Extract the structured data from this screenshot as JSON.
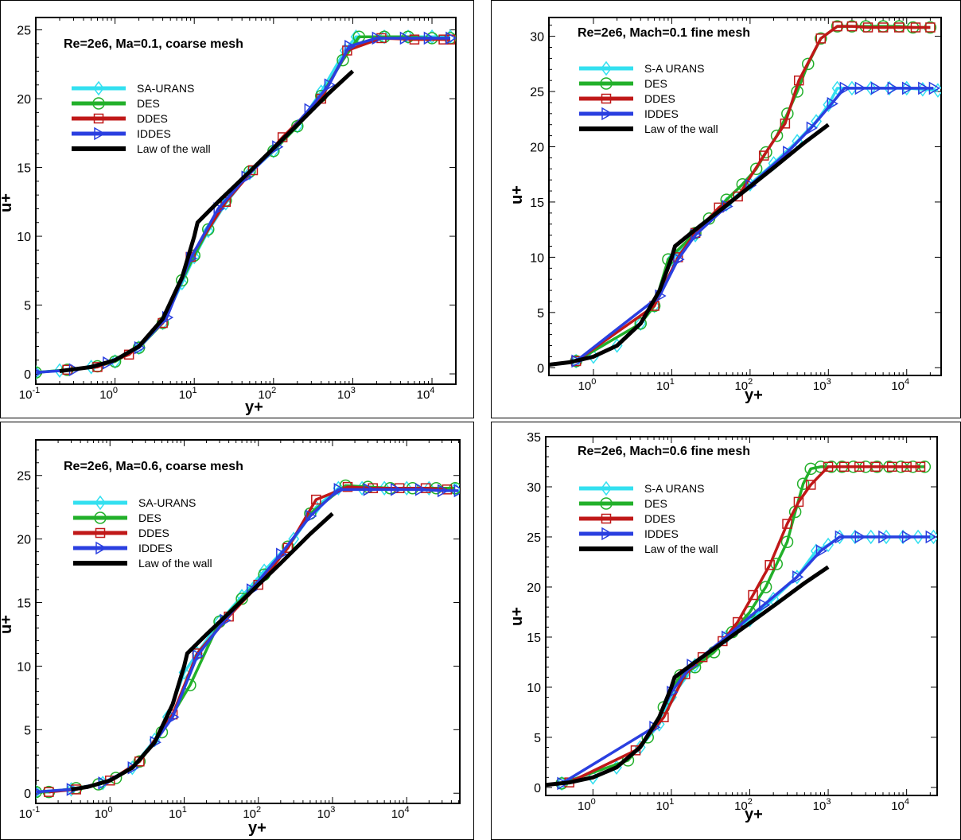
{
  "colors": {
    "SA": "#33e0f0",
    "DES": "#22b02a",
    "DDES": "#c01818",
    "IDDES": "#2a3fe0",
    "wall": "#000000"
  },
  "chart_data": [
    {
      "type": "line",
      "title": "Re=2e6, Ma=0.1, coarse mesh",
      "xlabel": "y+",
      "ylabel": "u+",
      "x_scale": "log",
      "xlim": [
        0.1,
        20000
      ],
      "ylim": [
        -0.75,
        25.9
      ],
      "x_tick_exponents": [
        -1,
        0,
        1,
        2,
        3,
        4
      ],
      "yticks": [
        0,
        5,
        10,
        15,
        20,
        25
      ],
      "legend_placement": "upper-left",
      "series": [
        {
          "name": "SA-URANS",
          "key": "SA",
          "marker": "diamond",
          "x": [
            0.1,
            0.2,
            0.5,
            1,
            2,
            4,
            7,
            10,
            15,
            25,
            50,
            100,
            200,
            400,
            800,
            1100,
            2500,
            5000,
            10000,
            17000
          ],
          "y": [
            0.1,
            0.25,
            0.5,
            0.9,
            1.9,
            3.7,
            6.6,
            8.5,
            10.4,
            12.4,
            14.6,
            16.2,
            18,
            20.5,
            23.5,
            24.5,
            24.5,
            24.5,
            24.5,
            24.5
          ]
        },
        {
          "name": "DES",
          "key": "DES",
          "marker": "circle",
          "x": [
            0.1,
            0.25,
            0.6,
            1,
            2,
            4,
            7,
            10,
            15,
            25,
            50,
            100,
            200,
            400,
            750,
            1200,
            2500,
            5000,
            10000,
            17000
          ],
          "y": [
            0.1,
            0.3,
            0.55,
            0.9,
            1.9,
            3.7,
            6.8,
            8.6,
            10.5,
            12.6,
            14.7,
            16.2,
            18,
            20.2,
            22.8,
            24.5,
            24.5,
            24.5,
            24.4,
            24.4
          ]
        },
        {
          "name": "DDES",
          "key": "DDES",
          "marker": "square",
          "x": [
            0.25,
            0.6,
            1.5,
            4,
            9,
            25,
            55,
            130,
            400,
            850,
            2300,
            6000,
            14000,
            17000
          ],
          "y": [
            0.3,
            0.5,
            1.4,
            3.7,
            8.5,
            12.5,
            14.8,
            17.2,
            20,
            23.5,
            24.4,
            24.3,
            24.3,
            24.3
          ]
        },
        {
          "name": "IDDES",
          "key": "IDDES",
          "marker": "triangle",
          "x": [
            0.1,
            0.3,
            0.8,
            2,
            4.5,
            9,
            20,
            45,
            110,
            280,
            500,
            900,
            2000,
            4500,
            9000,
            17000
          ],
          "y": [
            0.1,
            0.3,
            0.8,
            1.9,
            4.1,
            8.4,
            12,
            14.3,
            16.5,
            19.2,
            21,
            23.8,
            24.4,
            24.4,
            24.4,
            24.4
          ]
        },
        {
          "name": "Law of the wall",
          "key": "wall",
          "marker": "none",
          "x": [
            0.2,
            0.5,
            1,
            2,
            4,
            7,
            10,
            11,
            20,
            50,
            100,
            200,
            500,
            1000
          ],
          "y": [
            0.2,
            0.5,
            1,
            2,
            4,
            7,
            10,
            11,
            12.5,
            14.7,
            16.4,
            18.1,
            20.4,
            22.0
          ]
        }
      ]
    },
    {
      "type": "line",
      "title": "Re=2e6, Mach=0.1   fine mesh",
      "xlabel": "y+",
      "ylabel": "u+",
      "x_scale": "log",
      "xlim": [
        0.27,
        27500
      ],
      "ylim": [
        -0.7,
        31.7
      ],
      "x_tick_exponents": [
        0,
        1,
        2,
        3,
        4
      ],
      "yticks": [
        0,
        5,
        10,
        15,
        20,
        25,
        30
      ],
      "legend_placement": "upper-left",
      "series": [
        {
          "name": "S-A URANS",
          "key": "SA",
          "marker": "diamond",
          "x": [
            0.6,
            1,
            2,
            4,
            6,
            10,
            20,
            50,
            100,
            200,
            400,
            700,
            1000,
            1300,
            2000,
            3500,
            6000,
            10000,
            16000,
            25000
          ],
          "y": [
            0.6,
            1,
            2,
            4,
            5.6,
            9.8,
            12,
            14.8,
            16.6,
            18.5,
            20.5,
            22.3,
            23.8,
            25.3,
            25.3,
            25.3,
            25.3,
            25.3,
            25.2,
            25.1
          ]
        },
        {
          "name": "DES",
          "key": "DES",
          "marker": "circle",
          "x": [
            0.6,
            4,
            6,
            9,
            20,
            30,
            50,
            80,
            120,
            160,
            220,
            300,
            400,
            550,
            800,
            1300,
            2000,
            3000,
            5000,
            8000,
            12000,
            20000
          ],
          "y": [
            0.6,
            4,
            5.6,
            9.8,
            12.2,
            13.5,
            15.2,
            16.6,
            18,
            19.5,
            21,
            23,
            25,
            27.5,
            29.8,
            30.9,
            30.9,
            30.9,
            30.9,
            30.9,
            30.8,
            30.8
          ]
        },
        {
          "name": "DDES",
          "key": "DDES",
          "marker": "square",
          "x": [
            0.6,
            6,
            12,
            20,
            40,
            70,
            150,
            280,
            420,
            800,
            1300,
            2000,
            3200,
            5000,
            8000,
            13000,
            20000
          ],
          "y": [
            0.6,
            5.6,
            10,
            12.2,
            14.5,
            15.5,
            19.2,
            22.1,
            26,
            29.8,
            30.9,
            30.9,
            30.8,
            30.8,
            30.8,
            30.8,
            30.8
          ]
        },
        {
          "name": "IDDES",
          "key": "IDDES",
          "marker": "triangle",
          "x": [
            0.6,
            7,
            12,
            20,
            50,
            100,
            300,
            600,
            1100,
            1600,
            2500,
            4000,
            6500,
            10000,
            16000,
            22000
          ],
          "y": [
            0.6,
            6.5,
            9.8,
            12,
            14.6,
            16.5,
            19.5,
            21.7,
            23.9,
            25.3,
            25.3,
            25.3,
            25.3,
            25.3,
            25.3,
            25.3
          ]
        },
        {
          "name": "Law of  the wall",
          "key": "wall",
          "marker": "none",
          "x": [
            0.27,
            0.5,
            1,
            2,
            4,
            7,
            10,
            11,
            20,
            50,
            100,
            200,
            500,
            1000
          ],
          "y": [
            0.27,
            0.5,
            1,
            2,
            4,
            7,
            10,
            11,
            12.5,
            14.7,
            16.4,
            18.1,
            20.4,
            22.0
          ]
        }
      ]
    },
    {
      "type": "line",
      "title": "Re=2e6, Ma=0.6, coarse mesh",
      "xlabel": "y+",
      "ylabel": "u+",
      "x_scale": "log",
      "xlim": [
        0.1,
        52000
      ],
      "ylim": [
        -0.8,
        27.8
      ],
      "x_tick_exponents": [
        -1,
        0,
        1,
        2,
        3,
        4
      ],
      "yticks": [
        0,
        5,
        10,
        15,
        20,
        25
      ],
      "legend_placement": "upper-left",
      "series": [
        {
          "name": "SA-URANS",
          "key": "SA",
          "marker": "diamond",
          "x": [
            0.1,
            0.3,
            0.8,
            2,
            4,
            6,
            10,
            15,
            30,
            60,
            120,
            300,
            600,
            1200,
            2500,
            5000,
            10000,
            20000,
            45000
          ],
          "y": [
            0.1,
            0.3,
            0.8,
            2,
            4.2,
            6,
            9.5,
            11,
            13.5,
            15.5,
            17.5,
            20,
            22.5,
            24,
            24,
            24,
            24,
            24,
            23.9
          ]
        },
        {
          "name": "DES",
          "key": "DES",
          "marker": "circle",
          "x": [
            0.1,
            0.15,
            0.35,
            0.7,
            1.2,
            2.5,
            5,
            12,
            30,
            60,
            120,
            250,
            500,
            1500,
            3000,
            6000,
            12000,
            25000,
            45000
          ],
          "y": [
            0.1,
            0.1,
            0.4,
            0.7,
            1.2,
            2.5,
            4.8,
            8.5,
            13.5,
            15.3,
            17.2,
            19.4,
            22,
            24.2,
            24.1,
            24,
            24,
            24,
            24
          ]
        },
        {
          "name": "DDES",
          "key": "DDES",
          "marker": "square",
          "x": [
            0.15,
            0.35,
            1,
            2.5,
            7,
            15,
            40,
            100,
            250,
            600,
            1600,
            3500,
            8000,
            18000,
            35000
          ],
          "y": [
            0.1,
            0.3,
            1,
            2.5,
            6.2,
            11,
            13.9,
            16.4,
            19.3,
            23.1,
            24.1,
            24,
            24,
            24,
            23.9
          ]
        },
        {
          "name": "IDDES",
          "key": "IDDES",
          "marker": "triangle",
          "x": [
            0.1,
            0.3,
            0.8,
            2,
            4,
            7,
            15,
            35,
            80,
            200,
            500,
            1200,
            3000,
            7000,
            15000,
            30000,
            50000
          ],
          "y": [
            0.1,
            0.3,
            0.8,
            2,
            4,
            6,
            10.8,
            13.6,
            16,
            18.8,
            21.8,
            23.9,
            23.9,
            23.9,
            23.9,
            23.8,
            23.8
          ]
        },
        {
          "name": "Law of the wall",
          "key": "wall",
          "marker": "none",
          "x": [
            0.3,
            0.5,
            1,
            2,
            4,
            7,
            10,
            11,
            20,
            50,
            100,
            200,
            500,
            1000
          ],
          "y": [
            0.3,
            0.5,
            1,
            2,
            4,
            7,
            10,
            11,
            12.5,
            14.7,
            16.4,
            18.1,
            20.4,
            22.0
          ]
        }
      ]
    },
    {
      "type": "line",
      "title": "Re=2e6, Mach=0.6 fine mesh",
      "xlabel": "y+",
      "ylabel": "u+",
      "x_scale": "log",
      "xlim": [
        0.25,
        24500
      ],
      "ylim": [
        -0.8,
        35
      ],
      "x_tick_exponents": [
        0,
        1,
        2,
        3,
        4
      ],
      "yticks": [
        0,
        5,
        10,
        15,
        20,
        25,
        30,
        35
      ],
      "legend_placement": "upper-left",
      "series": [
        {
          "name": "S-A URANS",
          "key": "SA",
          "marker": "diamond",
          "x": [
            0.4,
            1,
            2,
            4,
            7,
            10,
            20,
            50,
            100,
            200,
            400,
            700,
            1000,
            1400,
            2200,
            3500,
            5500,
            9000,
            14000,
            22000
          ],
          "y": [
            0.4,
            1,
            2,
            4,
            6.3,
            9,
            12.2,
            15,
            16.7,
            18.8,
            21,
            23.6,
            24.2,
            25,
            25,
            25,
            25,
            25,
            25,
            25
          ]
        },
        {
          "name": "DES",
          "key": "DES",
          "marker": "circle",
          "x": [
            0.4,
            2.8,
            5,
            8,
            13,
            20,
            35,
            60,
            100,
            160,
            220,
            300,
            380,
            480,
            600,
            800,
            1100,
            1500,
            2100,
            3000,
            4200,
            6000,
            8500,
            12000,
            17000
          ],
          "y": [
            0.4,
            2.7,
            5,
            8,
            11.2,
            12,
            13.5,
            15.5,
            17.5,
            20,
            22.3,
            24.5,
            27.5,
            30.3,
            31.8,
            32,
            32,
            32,
            32,
            32,
            32,
            32,
            32,
            32,
            32
          ]
        },
        {
          "name": "DDES",
          "key": "DDES",
          "marker": "square",
          "x": [
            0.5,
            3.5,
            8,
            15,
            25,
            45,
            70,
            110,
            180,
            300,
            420,
            600,
            1000,
            1600,
            2500,
            4000,
            6500,
            10000,
            15000
          ],
          "y": [
            0.5,
            3.7,
            7,
            11.3,
            13,
            14.6,
            16.5,
            19.2,
            22.2,
            26.3,
            28.5,
            30.2,
            32,
            32,
            32,
            32,
            32,
            32,
            32
          ]
        },
        {
          "name": "IDDES",
          "key": "IDDES",
          "marker": "triangle",
          "x": [
            0.4,
            6,
            10,
            18,
            50,
            150,
            400,
            800,
            1400,
            2500,
            5000,
            10000,
            20000
          ],
          "y": [
            0.4,
            6,
            9.5,
            12.2,
            15,
            18.2,
            21,
            23.6,
            25,
            25,
            25,
            25,
            25
          ]
        },
        {
          "name": "Law of  the wall",
          "key": "wall",
          "marker": "none",
          "x": [
            0.25,
            0.5,
            1,
            2,
            4,
            7,
            10,
            11,
            20,
            50,
            100,
            200,
            500,
            1000
          ],
          "y": [
            0.25,
            0.5,
            1,
            2,
            4,
            7,
            10,
            11,
            12.5,
            14.7,
            16.4,
            18.1,
            20.4,
            22.0
          ]
        }
      ]
    }
  ]
}
